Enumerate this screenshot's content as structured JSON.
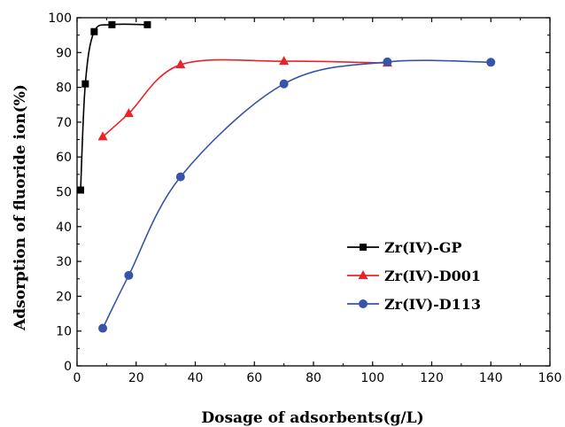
{
  "chart_data": {
    "type": "line",
    "title": "",
    "xlabel": "Dosage of adsorbents(g/L)",
    "ylabel": "Adsorption of fluoride ion(%)",
    "xlim": [
      0,
      160
    ],
    "ylim": [
      0,
      100
    ],
    "xticks": [
      "0",
      "20",
      "40",
      "60",
      "80",
      "100",
      "120",
      "140",
      "160"
    ],
    "yticks": [
      "0",
      "10",
      "20",
      "30",
      "40",
      "50",
      "60",
      "70",
      "80",
      "90",
      "100"
    ],
    "grid": false,
    "legend_position": "right",
    "series": [
      {
        "name": "Zr(IV)-GP",
        "color": "#000000",
        "marker": "square",
        "x": [
          1.2,
          2.8,
          5.8,
          11.8,
          23.8
        ],
        "y": [
          50.5,
          81,
          96,
          98,
          98
        ]
      },
      {
        "name": "Zr(IV)-D001",
        "color": "#e8242a",
        "marker": "triangle",
        "x": [
          8.7,
          17.5,
          35,
          70,
          105
        ],
        "y": [
          65.8,
          72.5,
          86.5,
          87.5,
          87
        ]
      },
      {
        "name": "Zr(IV)-D113",
        "color": "#3754a8",
        "marker": "circle",
        "x": [
          8.7,
          17.5,
          35,
          70,
          105,
          140
        ],
        "y": [
          10.8,
          26,
          54.3,
          81,
          87.3,
          87.2
        ]
      }
    ]
  }
}
